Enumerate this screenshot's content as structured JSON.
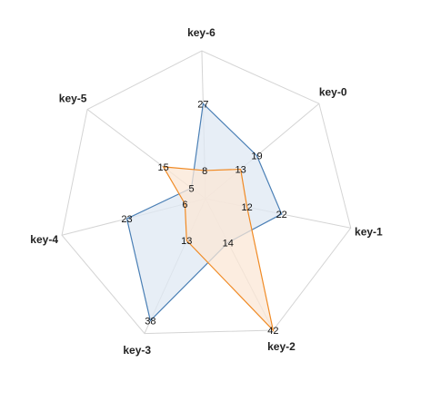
{
  "chart_data": {
    "type": "radar",
    "axes": [
      "key-0",
      "key-1",
      "key-2",
      "key-3",
      "key-4",
      "key-5",
      "key-6"
    ],
    "range": [
      0,
      42
    ],
    "grid": true,
    "series": [
      {
        "values": [
          19,
          22,
          14,
          38,
          23,
          5,
          27
        ],
        "color": "#4a7fb5",
        "fill": "#dfe8f3"
      },
      {
        "values": [
          13,
          12,
          42,
          13,
          6,
          15,
          8
        ],
        "color": "#f08a24",
        "fill": "#fbe7d5"
      }
    ]
  }
}
